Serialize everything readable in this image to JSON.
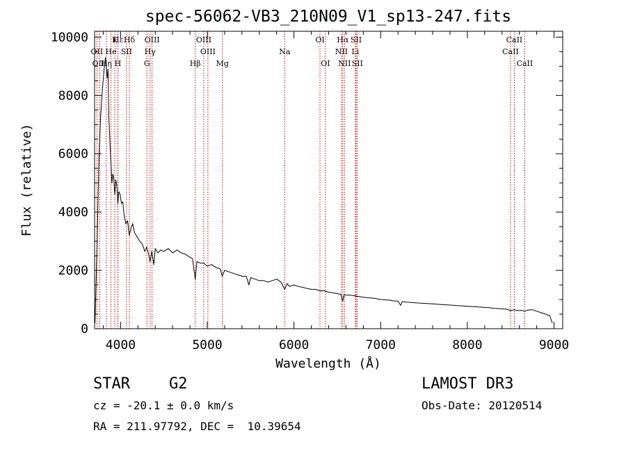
{
  "chart_data": {
    "type": "line",
    "title": "spec-56062-VB3_210N09_V1_sp13-247.fits",
    "xlabel": "Wavelength (Å)",
    "ylabel": "Flux (relative)",
    "xlim": [
      3700,
      9100
    ],
    "ylim": [
      0,
      10200
    ],
    "xticks": [
      4000,
      5000,
      6000,
      7000,
      8000,
      9000
    ],
    "yticks": [
      0,
      2000,
      4000,
      6000,
      8000,
      10000
    ],
    "xtick_labels": [
      "4000",
      "5000",
      "6000",
      "7000",
      "8000",
      "9000"
    ],
    "ytick_labels": [
      "0",
      "2000",
      "4000",
      "6000",
      "8000",
      "10000"
    ],
    "line_color": "#000000",
    "marker_color": "#cc0000",
    "series": [
      {
        "name": "flux",
        "x": [
          3705,
          3730,
          3750,
          3770,
          3790,
          3810,
          3825,
          3835,
          3845,
          3855,
          3865,
          3880,
          3890,
          3900,
          3910,
          3920,
          3933,
          3945,
          3955,
          3968,
          3980,
          3995,
          4010,
          4025,
          4040,
          4060,
          4080,
          4101,
          4120,
          4140,
          4160,
          4180,
          4200,
          4220,
          4250,
          4280,
          4300,
          4320,
          4340,
          4360,
          4383,
          4400,
          4430,
          4460,
          4500,
          4550,
          4600,
          4650,
          4700,
          4750,
          4800,
          4830,
          4861,
          4880,
          4920,
          4960,
          5000,
          5050,
          5100,
          5150,
          5172,
          5200,
          5250,
          5300,
          5350,
          5400,
          5450,
          5480,
          5500,
          5550,
          5600,
          5650,
          5700,
          5750,
          5800,
          5850,
          5893,
          5920,
          5950,
          6000,
          6050,
          6100,
          6150,
          6200,
          6250,
          6300,
          6350,
          6400,
          6450,
          6500,
          6540,
          6563,
          6580,
          6600,
          6650,
          6700,
          6750,
          6800,
          6850,
          6900,
          6950,
          7000,
          7050,
          7100,
          7150,
          7200,
          7230,
          7250,
          7300,
          7350,
          7400,
          7450,
          7500,
          7550,
          7600,
          7650,
          7700,
          7750,
          7800,
          7850,
          7900,
          7950,
          8000,
          8050,
          8100,
          8150,
          8200,
          8250,
          8300,
          8350,
          8400,
          8450,
          8498,
          8542,
          8580,
          8620,
          8662,
          8700,
          8750,
          8800,
          8850,
          8900,
          8950,
          8980
        ],
        "y": [
          200,
          3000,
          5800,
          7300,
          8200,
          8900,
          9300,
          9050,
          8600,
          8900,
          7200,
          6200,
          5600,
          5000,
          5300,
          5200,
          4600,
          5100,
          4950,
          4300,
          4700,
          4600,
          4300,
          4350,
          3900,
          3600,
          3700,
          3200,
          3450,
          3600,
          3300,
          3200,
          3100,
          3000,
          2900,
          2650,
          2800,
          2600,
          2300,
          2650,
          2200,
          2750,
          2600,
          2700,
          2650,
          2750,
          2600,
          2700,
          2600,
          2550,
          2450,
          2400,
          1700,
          2300,
          2250,
          2250,
          2150,
          2200,
          2100,
          2050,
          1800,
          2000,
          1950,
          1900,
          1850,
          1800,
          1800,
          1500,
          1750,
          1700,
          1650,
          1650,
          1600,
          1650,
          1700,
          1600,
          1350,
          1550,
          1450,
          1500,
          1450,
          1420,
          1380,
          1350,
          1350,
          1300,
          1300,
          1250,
          1230,
          1200,
          1180,
          950,
          1180,
          1150,
          1150,
          1130,
          1100,
          1080,
          1060,
          1050,
          1030,
          1000,
          990,
          980,
          950,
          950,
          800,
          930,
          910,
          900,
          890,
          880,
          870,
          860,
          850,
          840,
          830,
          820,
          810,
          800,
          790,
          780,
          770,
          760,
          750,
          740,
          730,
          720,
          700,
          690,
          680,
          670,
          620,
          650,
          620,
          630,
          600,
          640,
          650,
          600,
          550,
          500,
          450,
          200
        ]
      }
    ],
    "spectral_lines": [
      {
        "name": "Hε",
        "x": 3970,
        "row": 1
      },
      {
        "name": "K",
        "x": 3934,
        "row": 1
      },
      {
        "name": "Hδ",
        "x": 4101,
        "row": 1
      },
      {
        "name": "OIII",
        "x": 4363,
        "row": 1
      },
      {
        "name": "OIII",
        "x": 4959,
        "row": 1
      },
      {
        "name": "OI",
        "x": 6300,
        "row": 1
      },
      {
        "name": "Hα",
        "x": 6563,
        "row": 1
      },
      {
        "name": "SII",
        "x": 6717,
        "row": 1
      },
      {
        "name": "CaII",
        "x": 8542,
        "row": 1
      },
      {
        "name": "OII",
        "x": 3727,
        "row": 2
      },
      {
        "name": "He",
        "x": 3889,
        "row": 2
      },
      {
        "name": "SII",
        "x": 4068,
        "row": 2
      },
      {
        "name": "Hγ",
        "x": 4340,
        "row": 2
      },
      {
        "name": "OIII",
        "x": 5007,
        "row": 2
      },
      {
        "name": "Na",
        "x": 5893,
        "row": 2
      },
      {
        "name": "NII",
        "x": 6548,
        "row": 2
      },
      {
        "name": "Li",
        "x": 6708,
        "row": 2
      },
      {
        "name": "CaII",
        "x": 8498,
        "row": 2
      },
      {
        "name": "OIII",
        "x": 3760,
        "row": 3
      },
      {
        "name": "Hη",
        "x": 3835,
        "row": 3
      },
      {
        "name": "H",
        "x": 3968,
        "row": 3
      },
      {
        "name": "G",
        "x": 4304,
        "row": 3
      },
      {
        "name": "Hβ",
        "x": 4861,
        "row": 3
      },
      {
        "name": "Mg",
        "x": 5175,
        "row": 3
      },
      {
        "name": "OI",
        "x": 6363,
        "row": 3
      },
      {
        "name": "NII",
        "x": 6583,
        "row": 3
      },
      {
        "name": "SII",
        "x": 6731,
        "row": 3
      },
      {
        "name": "CaII",
        "x": 8662,
        "row": 3
      }
    ]
  },
  "info": {
    "object_class": "STAR",
    "subclass": "G2",
    "survey": "LAMOST DR3",
    "cz": "cz = -20.1 ± 0.0 km/s",
    "obs_date": "Obs-Date: 20120514",
    "coords": "RA = 211.97792, DEC =  10.39654"
  }
}
